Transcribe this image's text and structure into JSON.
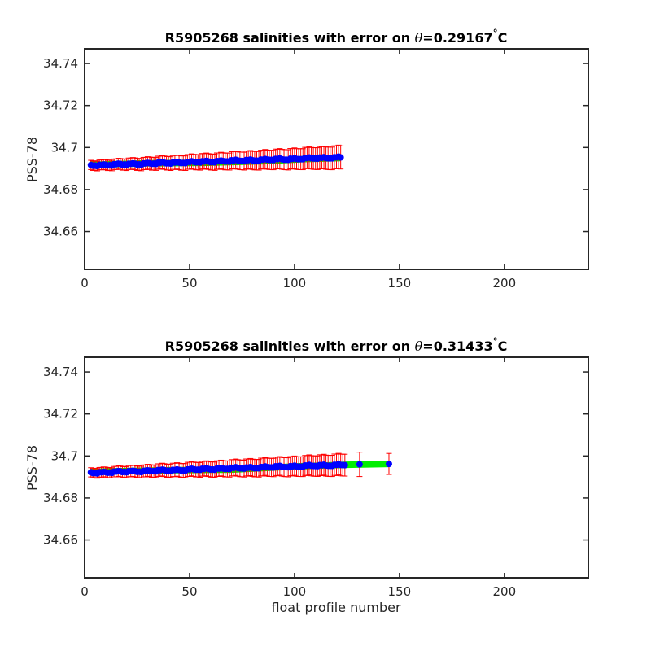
{
  "chart_data": [
    {
      "type": "scatter",
      "title_prefix": "R5905268 salinities with error on ",
      "theta_symbol": "θ",
      "theta_value": "=0.29167",
      "degree_mark": "°",
      "unit": "C",
      "xlabel": "",
      "ylabel": "PSS-78",
      "xlim": [
        0,
        240
      ],
      "ylim": [
        34.642,
        34.747
      ],
      "xticks": [
        0,
        50,
        100,
        150,
        200
      ],
      "yticks": [
        34.66,
        34.68,
        34.7,
        34.72,
        34.74
      ],
      "xtick_labels": [
        "0",
        "50",
        "100",
        "150",
        "200"
      ],
      "ytick_labels": [
        "34.66",
        "34.68",
        "34.7",
        "34.72",
        "34.74"
      ],
      "colors": {
        "points": "#0000ff",
        "error": "#ff0000",
        "band": "#00ee00",
        "axes": "#262626"
      },
      "x_start": 3,
      "x_end": 122,
      "y_start": 34.6915,
      "y_end": 34.6953,
      "error_start": 0.0022,
      "error_end": 0.0055,
      "wiggle": 0.0009,
      "band": [
        {
          "x": 3,
          "y": 34.6918
        },
        {
          "x": 30,
          "y": 34.6925
        },
        {
          "x": 60,
          "y": 34.6928
        },
        {
          "x": 85,
          "y": 34.6935
        },
        {
          "x": 105,
          "y": 34.6945
        },
        {
          "x": 122,
          "y": 34.695
        }
      ],
      "extra_points": []
    },
    {
      "type": "scatter",
      "title_prefix": "R5905268 salinities with error on ",
      "theta_symbol": "θ",
      "theta_value": "=0.31433",
      "degree_mark": "°",
      "unit": "C",
      "xlabel": "float profile number",
      "ylabel": "PSS-78",
      "xlim": [
        0,
        240
      ],
      "ylim": [
        34.642,
        34.747
      ],
      "xticks": [
        0,
        50,
        100,
        150,
        200
      ],
      "yticks": [
        34.66,
        34.68,
        34.7,
        34.72,
        34.74
      ],
      "xtick_labels": [
        "0",
        "50",
        "100",
        "150",
        "200"
      ],
      "ytick_labels": [
        "34.66",
        "34.68",
        "34.7",
        "34.72",
        "34.74"
      ],
      "colors": {
        "points": "#0000ff",
        "error": "#ff0000",
        "band": "#00ee00",
        "axes": "#262626"
      },
      "x_start": 3,
      "x_end": 124,
      "y_start": 34.692,
      "y_end": 34.6958,
      "error_start": 0.0022,
      "error_end": 0.0052,
      "wiggle": 0.0009,
      "band": [
        {
          "x": 3,
          "y": 34.6925
        },
        {
          "x": 40,
          "y": 34.6932
        },
        {
          "x": 70,
          "y": 34.6935
        },
        {
          "x": 100,
          "y": 34.695
        },
        {
          "x": 125,
          "y": 34.6958
        },
        {
          "x": 145,
          "y": 34.6962
        }
      ],
      "extra_points": [
        {
          "x": 131,
          "y": 34.696,
          "err": 0.0058
        },
        {
          "x": 145,
          "y": 34.6962,
          "err": 0.005
        }
      ]
    }
  ]
}
